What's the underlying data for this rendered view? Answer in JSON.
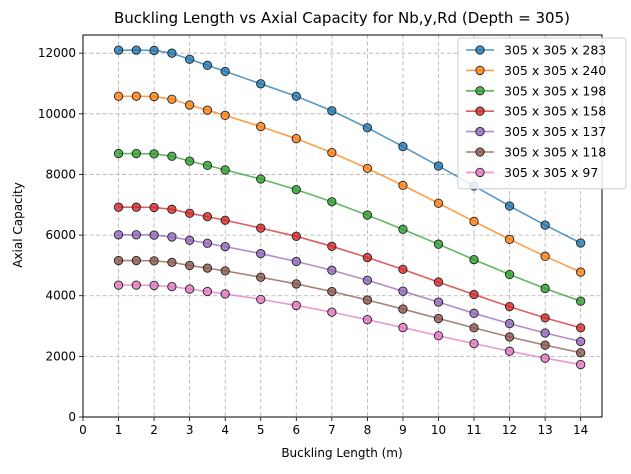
{
  "chart_data": {
    "type": "line",
    "title": "Buckling Length vs Axial Capacity for Nb,y,Rd (Depth = 305)",
    "xlabel": "Buckling Length (m)",
    "ylabel": "Axial Capacity",
    "xlim": [
      0,
      14.6
    ],
    "ylim": [
      0,
      12600
    ],
    "xticks": [
      0,
      1,
      2,
      3,
      4,
      5,
      6,
      7,
      8,
      9,
      10,
      11,
      12,
      13,
      14
    ],
    "yticks": [
      0,
      2000,
      4000,
      6000,
      8000,
      10000,
      12000
    ],
    "grid": true,
    "legend_position": "top-right",
    "x": [
      1,
      1.5,
      2,
      2.5,
      3,
      3.5,
      4,
      5,
      6,
      7,
      8,
      9,
      10,
      11,
      12,
      13,
      14
    ],
    "series": [
      {
        "name": "305 x 305 x 283",
        "color": "#1f77b4",
        "values": [
          12100,
          12100,
          12090,
          12000,
          11800,
          11600,
          11400,
          10990,
          10580,
          10100,
          9540,
          8920,
          8280,
          7620,
          6960,
          6330,
          5740
        ]
      },
      {
        "name": "305 x 305 x 240",
        "color": "#ff7f0e",
        "values": [
          10580,
          10580,
          10570,
          10480,
          10290,
          10120,
          9950,
          9580,
          9180,
          8720,
          8200,
          7640,
          7050,
          6450,
          5860,
          5300,
          4780
        ]
      },
      {
        "name": "305 x 305 x 198",
        "color": "#2ca02c",
        "values": [
          8690,
          8690,
          8680,
          8600,
          8440,
          8300,
          8150,
          7850,
          7500,
          7100,
          6660,
          6190,
          5700,
          5190,
          4700,
          4240,
          3820
        ]
      },
      {
        "name": "305 x 305 x 158",
        "color": "#d62728",
        "values": [
          6920,
          6920,
          6910,
          6850,
          6720,
          6610,
          6490,
          6230,
          5960,
          5630,
          5260,
          4870,
          4450,
          4040,
          3640,
          3270,
          2940
        ]
      },
      {
        "name": "305 x 305 x 137",
        "color": "#9467bd",
        "values": [
          6010,
          6010,
          6000,
          5940,
          5830,
          5730,
          5620,
          5390,
          5130,
          4840,
          4510,
          4150,
          3790,
          3420,
          3080,
          2770,
          2490
        ]
      },
      {
        "name": "305 x 305 x 118",
        "color": "#8c564b",
        "values": [
          5160,
          5160,
          5150,
          5100,
          5000,
          4910,
          4820,
          4610,
          4390,
          4140,
          3860,
          3560,
          3250,
          2940,
          2640,
          2370,
          2120
        ]
      },
      {
        "name": "305 x 305 x 97",
        "color": "#e377c2",
        "values": [
          4350,
          4350,
          4340,
          4300,
          4220,
          4140,
          4060,
          3880,
          3680,
          3460,
          3210,
          2950,
          2680,
          2420,
          2170,
          1940,
          1730
        ]
      }
    ]
  }
}
